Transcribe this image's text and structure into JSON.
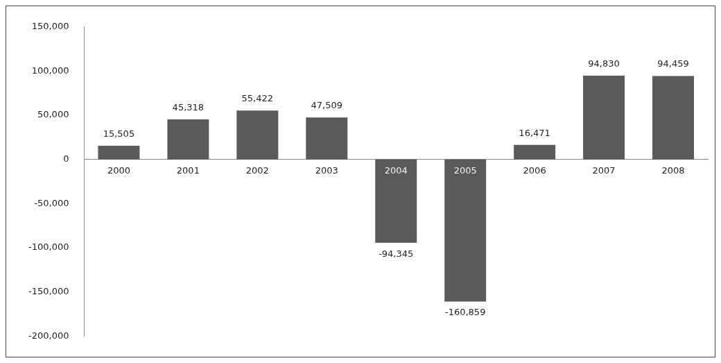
{
  "chart_data": {
    "type": "bar",
    "categories": [
      "2000",
      "2001",
      "2002",
      "2003",
      "2004",
      "2005",
      "2006",
      "2007",
      "2008"
    ],
    "values": [
      15505,
      45318,
      55422,
      47509,
      -94345,
      -160859,
      16471,
      94830,
      94459
    ],
    "color": "#5a5a5a",
    "ylim": [
      -200000,
      150000
    ],
    "yticks": [
      {
        "value": -200000,
        "label": "-200,000"
      },
      {
        "value": -150000,
        "label": "-150,000"
      },
      {
        "value": -100000,
        "label": "-100,000"
      },
      {
        "value": -50000,
        "label": "-50,000"
      },
      {
        "value": 0,
        "label": "0"
      },
      {
        "value": 50000,
        "label": "50,000"
      },
      {
        "value": 100000,
        "label": "100,000"
      },
      {
        "value": 150000,
        "label": "150,000"
      }
    ],
    "value_labels": [
      "15,505",
      "45,318",
      "55,422",
      "47,509",
      "-94,345",
      "-160,859",
      "16,471",
      "94,830",
      "94,459"
    ],
    "grid": false,
    "legend": false
  }
}
